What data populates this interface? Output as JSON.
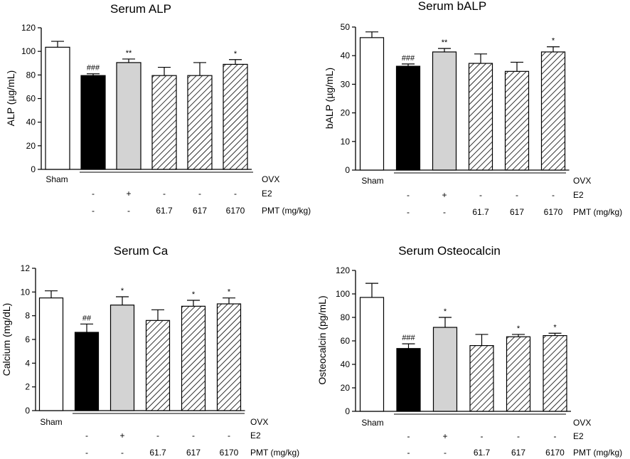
{
  "chart_data": [
    {
      "type": "bar",
      "title": "Serum ALP",
      "ylabel": "ALP (µg/mL)",
      "ylim": [
        0,
        120
      ],
      "ytick_step": 20,
      "categories": [
        "Sham",
        "OVX",
        "OVX+E2",
        "OVX+PMT 61.7",
        "OVX+PMT 617",
        "OVX+PMT 6170"
      ],
      "values": [
        103.5,
        79.5,
        90.5,
        79.5,
        79.5,
        89
      ],
      "errors": [
        5,
        1.5,
        3,
        7,
        11,
        4
      ],
      "significance": [
        "",
        "###",
        "**",
        "",
        "",
        "*"
      ],
      "grid": false
    },
    {
      "type": "bar",
      "title": "Serum bALP",
      "ylabel": "bALP (µg/mL)",
      "ylim": [
        0,
        50
      ],
      "ytick_step": 10,
      "categories": [
        "Sham",
        "OVX",
        "OVX+E2",
        "OVX+PMT 61.7",
        "OVX+PMT 617",
        "OVX+PMT 6170"
      ],
      "values": [
        46.3,
        36.3,
        41.3,
        37.3,
        34.5,
        41.3
      ],
      "errors": [
        2,
        0.8,
        1.2,
        3.3,
        3.2,
        1.8
      ],
      "significance": [
        "",
        "###",
        "**",
        "",
        "",
        "*"
      ],
      "grid": false
    },
    {
      "type": "bar",
      "title": "Serum Ca",
      "ylabel": "Calcium (mg/dL)",
      "ylim": [
        0,
        12
      ],
      "ytick_step": 2,
      "categories": [
        "Sham",
        "OVX",
        "OVX+E2",
        "OVX+PMT 61.7",
        "OVX+PMT 617",
        "OVX+PMT 6170"
      ],
      "values": [
        9.5,
        6.6,
        8.9,
        7.6,
        8.8,
        9.0
      ],
      "errors": [
        0.6,
        0.7,
        0.7,
        0.9,
        0.5,
        0.5
      ],
      "significance": [
        "",
        "##",
        "*",
        "",
        "*",
        "*"
      ],
      "grid": false
    },
    {
      "type": "bar",
      "title": "Serum Osteocalcin",
      "ylabel": "Osteocalcin (pg/mL)",
      "ylim": [
        0,
        120
      ],
      "ytick_step": 20,
      "categories": [
        "Sham",
        "OVX",
        "OVX+E2",
        "OVX+PMT 61.7",
        "OVX+PMT 617",
        "OVX+PMT 6170"
      ],
      "values": [
        97,
        53.5,
        71.5,
        56,
        63.5,
        64.5
      ],
      "errors": [
        12,
        4,
        8.5,
        9.5,
        2,
        2
      ],
      "significance": [
        "",
        "###",
        "*",
        "",
        "*",
        "*"
      ],
      "grid": false
    }
  ],
  "legend_rows": {
    "sham_label": "Sham",
    "ovx_label": "OVX",
    "e2_label": "E2",
    "pmt_label": "PMT (mg/kg)",
    "e2_marks": [
      "-",
      "+",
      "-",
      "-",
      "-"
    ],
    "pmt_marks": [
      "-",
      "-",
      "61.7",
      "617",
      "6170"
    ]
  },
  "bar_styles": [
    "white",
    "black",
    "lightgray",
    "hatched",
    "hatched",
    "hatched"
  ],
  "colors": {
    "axis": "#000000",
    "bar_black": "#000000",
    "bar_gray": "#d3d3d3",
    "bar_white": "#ffffff",
    "hatch": "#000000"
  }
}
